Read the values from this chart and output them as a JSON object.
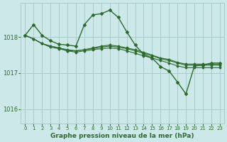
{
  "bg_color": "#cce8e8",
  "grid_color": "#aacccc",
  "line_color": "#2d6a2d",
  "xlabel": "Graphe pression niveau de la mer (hPa)",
  "yticks": [
    1016,
    1017,
    1018
  ],
  "xticks": [
    0,
    1,
    2,
    3,
    4,
    5,
    6,
    7,
    8,
    9,
    10,
    11,
    12,
    13,
    14,
    15,
    16,
    17,
    18,
    19,
    20,
    21,
    22,
    23
  ],
  "xlim": [
    -0.5,
    23.5
  ],
  "ylim": [
    1015.6,
    1018.95
  ],
  "series": [
    [
      1018.05,
      1018.35,
      1018.05,
      1017.9,
      1017.8,
      1017.78,
      1017.75,
      1018.35,
      1018.62,
      1018.65,
      1018.75,
      1018.55,
      1018.15,
      1017.78,
      1017.52,
      1017.42,
      1017.18,
      1017.06,
      1016.75,
      1016.42,
      1017.2,
      1017.22,
      1017.28,
      1017.28
    ],
    [
      1018.05,
      1017.95,
      1017.82,
      1017.75,
      1017.7,
      1017.65,
      1017.62,
      1017.65,
      1017.7,
      1017.75,
      1017.78,
      1017.75,
      1017.7,
      1017.65,
      1017.58,
      1017.5,
      1017.42,
      1017.38,
      1017.3,
      1017.25,
      1017.25,
      1017.25,
      1017.25,
      1017.25
    ],
    [
      1018.05,
      1017.95,
      1017.82,
      1017.75,
      1017.7,
      1017.62,
      1017.62,
      1017.65,
      1017.68,
      1017.72,
      1017.75,
      1017.72,
      1017.68,
      1017.62,
      1017.55,
      1017.48,
      1017.4,
      1017.35,
      1017.28,
      1017.22,
      1017.22,
      1017.22,
      1017.22,
      1017.22
    ],
    [
      1018.05,
      1017.95,
      1017.82,
      1017.72,
      1017.68,
      1017.62,
      1017.58,
      1017.62,
      1017.65,
      1017.68,
      1017.7,
      1017.68,
      1017.62,
      1017.55,
      1017.48,
      1017.42,
      1017.35,
      1017.28,
      1017.2,
      1017.15,
      1017.15,
      1017.15,
      1017.15,
      1017.15
    ]
  ]
}
